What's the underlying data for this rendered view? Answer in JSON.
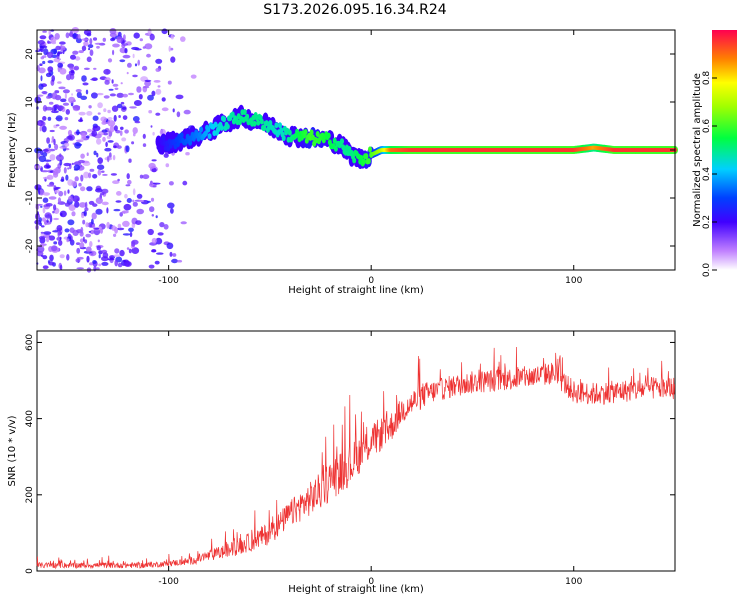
{
  "title": "S173.2026.095.16.34.R24",
  "chart_data": [
    {
      "type": "heatmap",
      "description_axes": {
        "xlabel": "Height of straight line (km)",
        "ylabel": "Frequency (Hz)",
        "xlim": [
          -165,
          150
        ],
        "ylim": [
          -25,
          25
        ],
        "xticks": [
          -100,
          0,
          100
        ],
        "yticks": [
          -20,
          -10,
          0,
          10,
          20
        ]
      },
      "colorbar": {
        "label": "Normalized spectral amplitude",
        "range": [
          0,
          1
        ],
        "ticks": [
          0.0,
          0.2,
          0.4,
          0.6,
          0.8
        ]
      },
      "ridge": {
        "x": [
          -105,
          -95,
          -85,
          -75,
          -65,
          -55,
          -45,
          -40,
          -30,
          -20,
          -15,
          -10,
          -5,
          0,
          5,
          10,
          20,
          40,
          60,
          80,
          100,
          110,
          120,
          140,
          150
        ],
        "frequency": [
          1,
          2,
          3,
          5,
          7,
          6,
          4,
          3,
          2.5,
          2,
          1,
          -1,
          -2,
          -1,
          0,
          0,
          0,
          0,
          0,
          0,
          0,
          0.5,
          0,
          0,
          0
        ],
        "amplitude": [
          0.2,
          0.3,
          0.35,
          0.45,
          0.5,
          0.5,
          0.45,
          0.5,
          0.6,
          0.55,
          0.5,
          0.5,
          0.55,
          0.6,
          0.7,
          0.9,
          0.95,
          0.95,
          0.95,
          0.95,
          0.95,
          0.85,
          0.95,
          0.95,
          0.95
        ]
      }
    },
    {
      "type": "line",
      "xlabel": "Height of straight line (km)",
      "ylabel": "SNR (10 * v/v)",
      "xlim": [
        -165,
        150
      ],
      "ylim": [
        0,
        630
      ],
      "xticks": [
        -100,
        0,
        100
      ],
      "yticks": [
        0,
        200,
        400,
        600
      ],
      "series": [
        {
          "name": "SNR",
          "color": "#ee3333",
          "x": [
            -165,
            -150,
            -130,
            -110,
            -100,
            -90,
            -80,
            -70,
            -60,
            -50,
            -40,
            -30,
            -25,
            -20,
            -15,
            -10,
            -5,
            0,
            5,
            10,
            15,
            20,
            25,
            30,
            40,
            50,
            60,
            70,
            80,
            90,
            100,
            110,
            120,
            130,
            140,
            150
          ],
          "y": [
            15,
            15,
            15,
            15,
            20,
            25,
            40,
            55,
            75,
            100,
            150,
            190,
            210,
            240,
            260,
            280,
            310,
            340,
            360,
            380,
            420,
            440,
            460,
            470,
            485,
            495,
            500,
            505,
            510,
            520,
            470,
            465,
            470,
            475,
            480,
            480
          ],
          "spread": [
            15,
            15,
            15,
            15,
            15,
            20,
            30,
            40,
            50,
            60,
            70,
            90,
            100,
            110,
            110,
            110,
            100,
            90,
            90,
            80,
            70,
            70,
            70,
            60,
            60,
            60,
            60,
            60,
            60,
            60,
            60,
            60,
            60,
            60,
            60,
            60
          ]
        }
      ]
    }
  ]
}
